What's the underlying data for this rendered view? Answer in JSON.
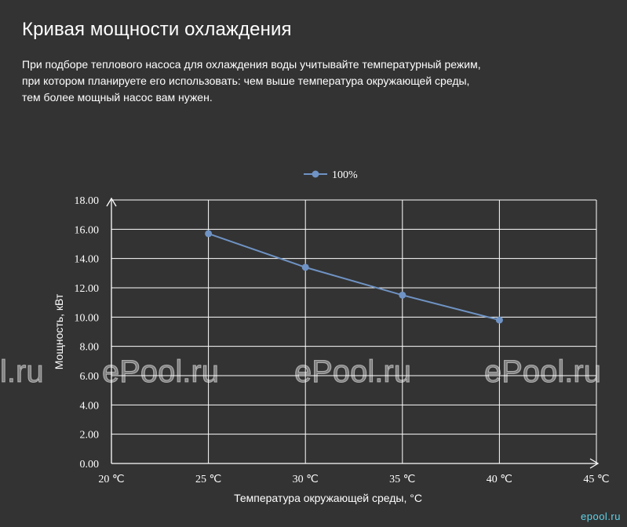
{
  "header": {
    "title": "Кривая мощности охлаждения",
    "description_lines": [
      "При подборе теплового насоса для охлаждения воды учитывайте температурный режим,",
      "при котором планируете его использовать: чем выше температура окружающей среды,",
      "тем более мощный насос вам нужен."
    ]
  },
  "watermarks": {
    "text_1": "l.ru",
    "text_2": "ePool.ru",
    "text_3": "ePool.ru",
    "text_4": "ePool.ru",
    "corner": "epool.ru"
  },
  "colors": {
    "background": "#333333",
    "series": "#6f93c4",
    "grid": "#ffffff"
  },
  "chart_data": {
    "type": "line",
    "x": [
      "20 ℃",
      "25 ℃",
      "30 ℃",
      "35 ℃",
      "40 ℃",
      "45 ℃"
    ],
    "series": [
      {
        "name": "100%",
        "values": [
          null,
          15.7,
          13.4,
          11.5,
          9.8,
          null
        ]
      }
    ],
    "yticks": [
      "0.00",
      "2.00",
      "4.00",
      "6.00",
      "8.00",
      "10.00",
      "12.00",
      "14.00",
      "16.00",
      "18.00"
    ],
    "ylim": [
      0,
      18
    ],
    "xlabel": "Температура окружающей среды, °C",
    "ylabel": "Мощность, кВт",
    "grid": true,
    "legend": "top-center"
  }
}
